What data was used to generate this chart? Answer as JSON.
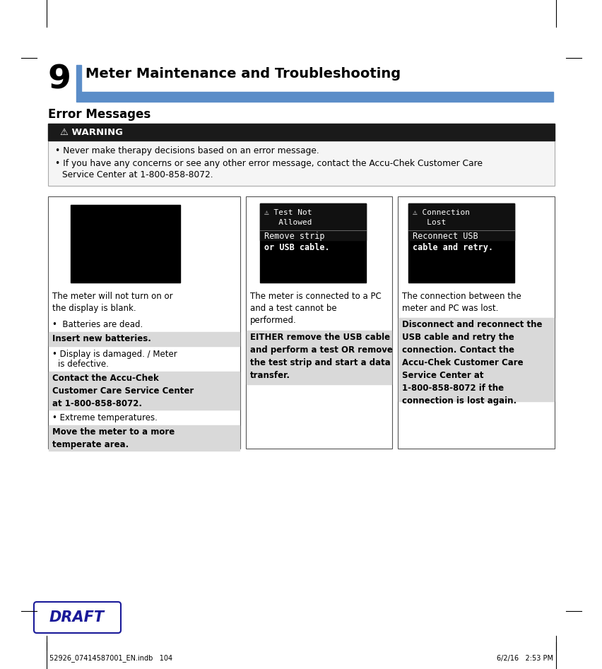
{
  "page_bg": "#ffffff",
  "chapter_num": "9",
  "chapter_title": "Meter Maintenance and Troubleshooting",
  "chapter_bar_color": "#5b8dc8",
  "section_title": "Error Messages",
  "warning_bg": "#1a1a1a",
  "warning_text_color": "#ffffff",
  "warning_title": "⚠ WARNING",
  "warning_bullet1": "Never make therapy decisions based on an error message.",
  "warning_bullet2a": "If you have any concerns or see any other error message, contact the Accu-Chek Customer Care",
  "warning_bullet2b": "Service Center at 1-800-858-8072.",
  "col1_title": "The meter will not turn on or\nthe display is blank.",
  "col1_b1": "•  Batteries are dead.",
  "col1_g1": "Insert new batteries.",
  "col1_b2a": "• Display is damaged. / Meter",
  "col1_b2b": "   is defective.",
  "col1_g2": "Contact the Accu-Chek\nCustomer Care Service Center\nat 1-800-858-8072.",
  "col1_b3": "• Extreme temperatures.",
  "col1_g3": "Move the meter to a more\ntemperate area.",
  "col2_title": "The meter is connected to a PC\nand a test cannot be\nperformed.",
  "col2_g1": "EITHER remove the USB cable\nand perform a test OR remove\nthe test strip and start a data\ntransfer.",
  "col3_title": "The connection between the\nmeter and PC was lost.",
  "col3_g1": "Disconnect and reconnect the\nUSB cable and retry the\nconnection. Contact the\nAccu-Chek Customer Care\nService Center at\n1-800-858-8072 if the\nconnection is lost again.",
  "disp2_line1": "⚠ Test Not",
  "disp2_line2": "   Allowed",
  "disp2_line3": "Remove strip",
  "disp2_line4": "or USB cable.",
  "disp3_line1": "⚠ Connection",
  "disp3_line2": "   Lost",
  "disp3_line3": "Reconnect USB",
  "disp3_line4": "cable and retry.",
  "footer_left": "52926_07414587001_EN.indb   104",
  "footer_right": "6/2/16   2:53 PM",
  "draft_text": "DRAFT",
  "draft_border": "#1a1a99",
  "draft_text_color": "#1a1a99",
  "gray_bg": "#d9d9d9",
  "warn_box_border": "#aaaaaa",
  "col_border": "#555555"
}
